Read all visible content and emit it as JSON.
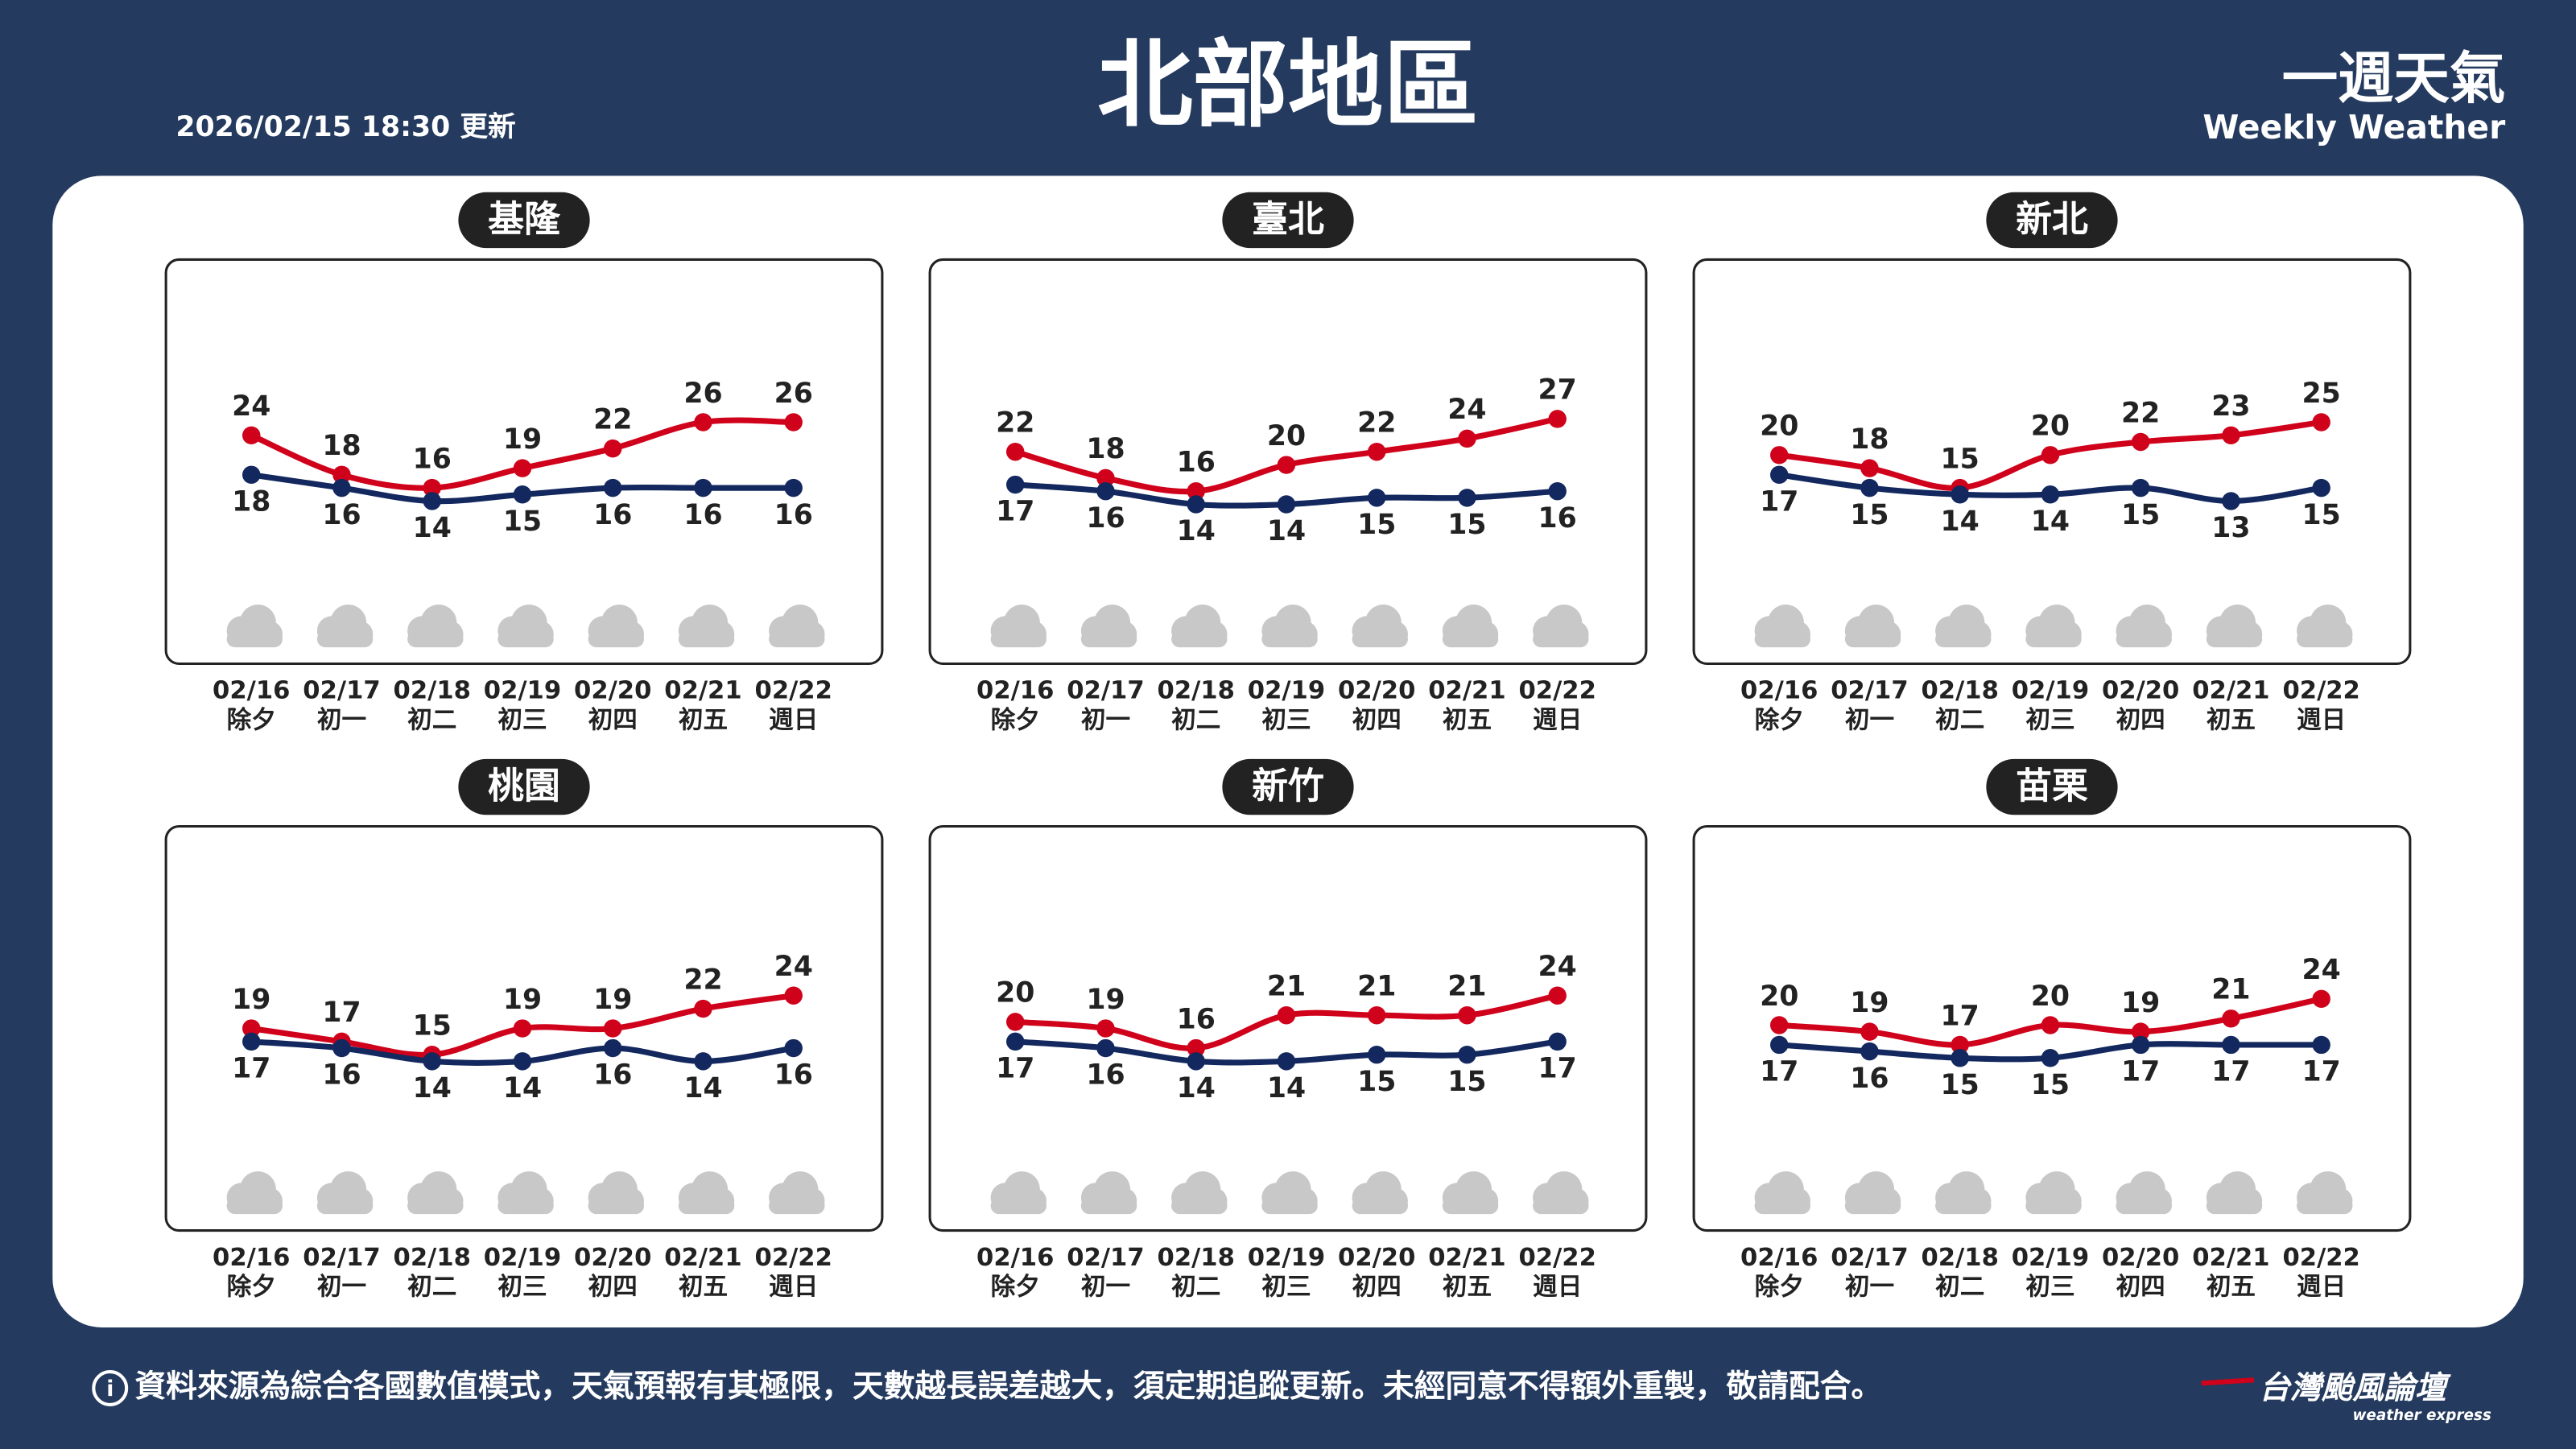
{
  "header": {
    "title": "北部地區",
    "updated": "2026/02/15 18:30 更新",
    "brand": "一週天氣",
    "brand_en": "Weekly Weather"
  },
  "footer": {
    "note": "資料來源為綜合各國數值模式，天氣預報有其極限，天數越長誤差越大，須定期追蹤更新。未經同意不得額外重製，敬請配合。",
    "logo": "台灣颱風論壇",
    "logo_en": "weather express"
  },
  "chart_data": [
    {
      "type": "line",
      "title": "基隆",
      "categories": [
        "02/16",
        "02/17",
        "02/18",
        "02/19",
        "02/20",
        "02/21",
        "02/22"
      ],
      "days": [
        "除夕",
        "初一",
        "初二",
        "初三",
        "初四",
        "初五",
        "週日"
      ],
      "series": [
        {
          "color": "#d0021b",
          "values": [
            24,
            18,
            16,
            19,
            22,
            26,
            26
          ]
        },
        {
          "color": "#13285e",
          "values": [
            18,
            16,
            14,
            15,
            16,
            16,
            16
          ]
        }
      ]
    },
    {
      "type": "line",
      "title": "臺北",
      "categories": [
        "02/16",
        "02/17",
        "02/18",
        "02/19",
        "02/20",
        "02/21",
        "02/22"
      ],
      "days": [
        "除夕",
        "初一",
        "初二",
        "初三",
        "初四",
        "初五",
        "週日"
      ],
      "series": [
        {
          "color": "#d0021b",
          "values": [
            22,
            18,
            16,
            20,
            22,
            24,
            27
          ]
        },
        {
          "color": "#13285e",
          "values": [
            17,
            16,
            14,
            14,
            15,
            15,
            16
          ]
        }
      ]
    },
    {
      "type": "line",
      "title": "新北",
      "categories": [
        "02/16",
        "02/17",
        "02/18",
        "02/19",
        "02/20",
        "02/21",
        "02/22"
      ],
      "days": [
        "除夕",
        "初一",
        "初二",
        "初三",
        "初四",
        "初五",
        "週日"
      ],
      "series": [
        {
          "color": "#d0021b",
          "values": [
            20,
            18,
            15,
            20,
            22,
            23,
            25
          ]
        },
        {
          "color": "#13285e",
          "values": [
            17,
            15,
            14,
            14,
            15,
            13,
            15
          ]
        }
      ]
    },
    {
      "type": "line",
      "title": "桃園",
      "categories": [
        "02/16",
        "02/17",
        "02/18",
        "02/19",
        "02/20",
        "02/21",
        "02/22"
      ],
      "days": [
        "除夕",
        "初一",
        "初二",
        "初三",
        "初四",
        "初五",
        "週日"
      ],
      "series": [
        {
          "color": "#d0021b",
          "values": [
            19,
            17,
            15,
            19,
            19,
            22,
            24
          ]
        },
        {
          "color": "#13285e",
          "values": [
            17,
            16,
            14,
            14,
            16,
            14,
            16
          ]
        }
      ]
    },
    {
      "type": "line",
      "title": "新竹",
      "categories": [
        "02/16",
        "02/17",
        "02/18",
        "02/19",
        "02/20",
        "02/21",
        "02/22"
      ],
      "days": [
        "除夕",
        "初一",
        "初二",
        "初三",
        "初四",
        "初五",
        "週日"
      ],
      "series": [
        {
          "color": "#d0021b",
          "values": [
            20,
            19,
            16,
            21,
            21,
            21,
            24
          ]
        },
        {
          "color": "#13285e",
          "values": [
            17,
            16,
            14,
            14,
            15,
            15,
            17
          ]
        }
      ]
    },
    {
      "type": "line",
      "title": "苗栗",
      "categories": [
        "02/16",
        "02/17",
        "02/18",
        "02/19",
        "02/20",
        "02/21",
        "02/22"
      ],
      "days": [
        "除夕",
        "初一",
        "初二",
        "初三",
        "初四",
        "初五",
        "週日"
      ],
      "series": [
        {
          "color": "#d0021b",
          "values": [
            20,
            19,
            17,
            20,
            19,
            21,
            24
          ]
        },
        {
          "color": "#13285e",
          "values": [
            17,
            16,
            15,
            15,
            17,
            17,
            17
          ]
        }
      ]
    }
  ]
}
